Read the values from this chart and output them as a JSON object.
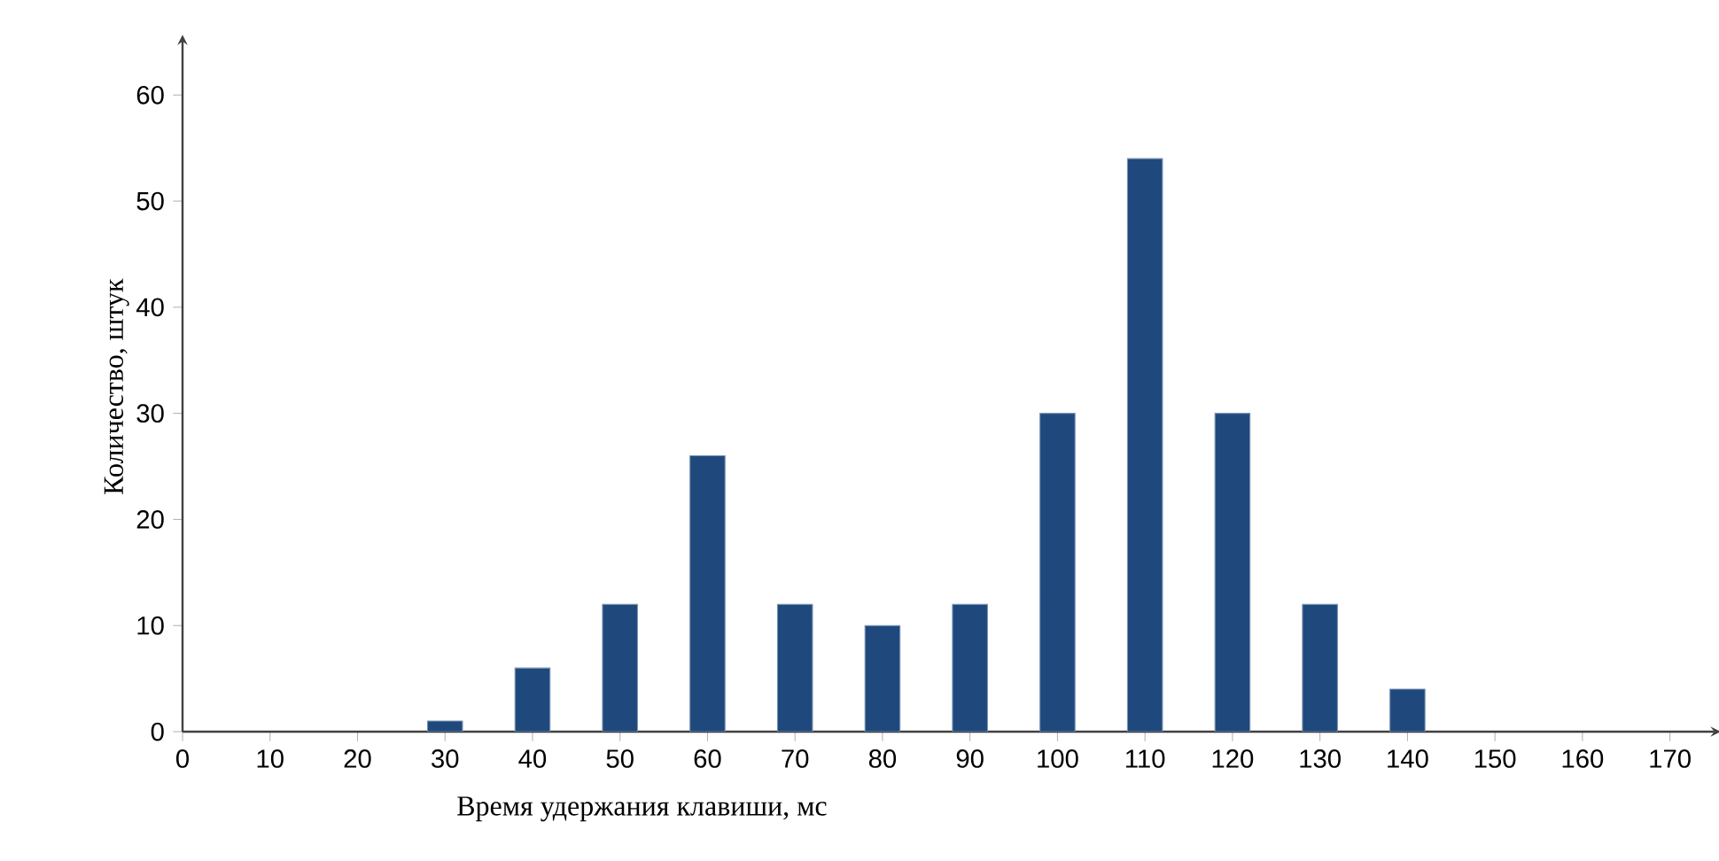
{
  "chart_data": {
    "type": "bar",
    "xlabel": "Время удержания клавиши, мс",
    "ylabel": "Количество, штук",
    "x": [
      30,
      40,
      50,
      60,
      70,
      80,
      90,
      100,
      110,
      120,
      130,
      140
    ],
    "values": [
      1,
      6,
      12,
      26,
      12,
      10,
      12,
      30,
      54,
      30,
      12,
      4
    ],
    "color": "#1f497d",
    "xlim": [
      0,
      175
    ],
    "ylim": [
      0,
      65
    ],
    "xticks": [
      0,
      10,
      20,
      30,
      40,
      50,
      60,
      70,
      80,
      90,
      100,
      110,
      120,
      130,
      140,
      150,
      160,
      170
    ],
    "yticks": [
      0,
      10,
      20,
      30,
      40,
      50,
      60
    ]
  }
}
